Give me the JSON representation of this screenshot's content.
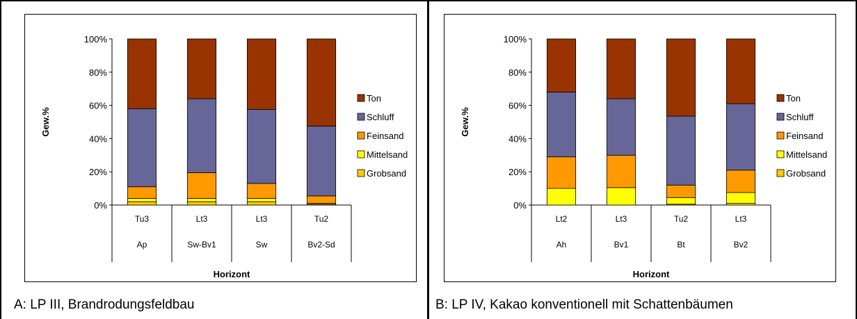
{
  "colors": {
    "Ton": "#993300",
    "Schluff": "#666699",
    "Feinsand": "#ff9900",
    "Mittelsand": "#ffff00",
    "Grobsand": "#ffcc00"
  },
  "panels": [
    {
      "caption": "A: LP III, Brandrodungsfeldbau",
      "chart_data": {
        "type": "bar",
        "stacked": true,
        "categories": [
          "Tu3",
          "Lt3",
          "Lt3",
          "Tu2"
        ],
        "categories2": [
          "Ap",
          "Sw-Bv1",
          "Sw",
          "Bv2-Sd"
        ],
        "xlabel": "Horizont",
        "ylabel": "Gew.%",
        "ylim": [
          0,
          100
        ],
        "yticks": [
          "0%",
          "20%",
          "40%",
          "60%",
          "80%",
          "100%"
        ],
        "legend_position": "right",
        "series": [
          {
            "name": "Grobsand",
            "values": [
              2,
              2,
              2,
              0.5
            ]
          },
          {
            "name": "Mittelsand",
            "values": [
              2,
              2,
              2,
              0.5
            ]
          },
          {
            "name": "Feinsand",
            "values": [
              7,
              15.5,
              9,
              4.5
            ]
          },
          {
            "name": "Schluff",
            "values": [
              47,
              44.5,
              44.5,
              42
            ]
          },
          {
            "name": "Ton",
            "values": [
              42,
              36,
              42.5,
              52.5
            ]
          }
        ]
      }
    },
    {
      "caption": "B: LP IV, Kakao konventionell mit Schattenbäumen",
      "chart_data": {
        "type": "bar",
        "stacked": true,
        "categories": [
          "Lt2",
          "Lt3",
          "Tu2",
          "Lt3"
        ],
        "categories2": [
          "Ah",
          "Bv1",
          "Bt",
          "Bv2"
        ],
        "xlabel": "Horizont",
        "ylabel": "Gew.%",
        "ylim": [
          0,
          100
        ],
        "yticks": [
          "0%",
          "20%",
          "40%",
          "60%",
          "80%",
          "100%"
        ],
        "legend_position": "right",
        "series": [
          {
            "name": "Grobsand",
            "values": [
              0,
              0,
              0.5,
              1
            ]
          },
          {
            "name": "Mittelsand",
            "values": [
              10,
              10.5,
              4,
              6.5
            ]
          },
          {
            "name": "Feinsand",
            "values": [
              19,
              19.5,
              7.5,
              13.5
            ]
          },
          {
            "name": "Schluff",
            "values": [
              39,
              34,
              41.5,
              40
            ]
          },
          {
            "name": "Ton",
            "values": [
              32,
              36,
              46.5,
              39
            ]
          }
        ]
      }
    }
  ]
}
